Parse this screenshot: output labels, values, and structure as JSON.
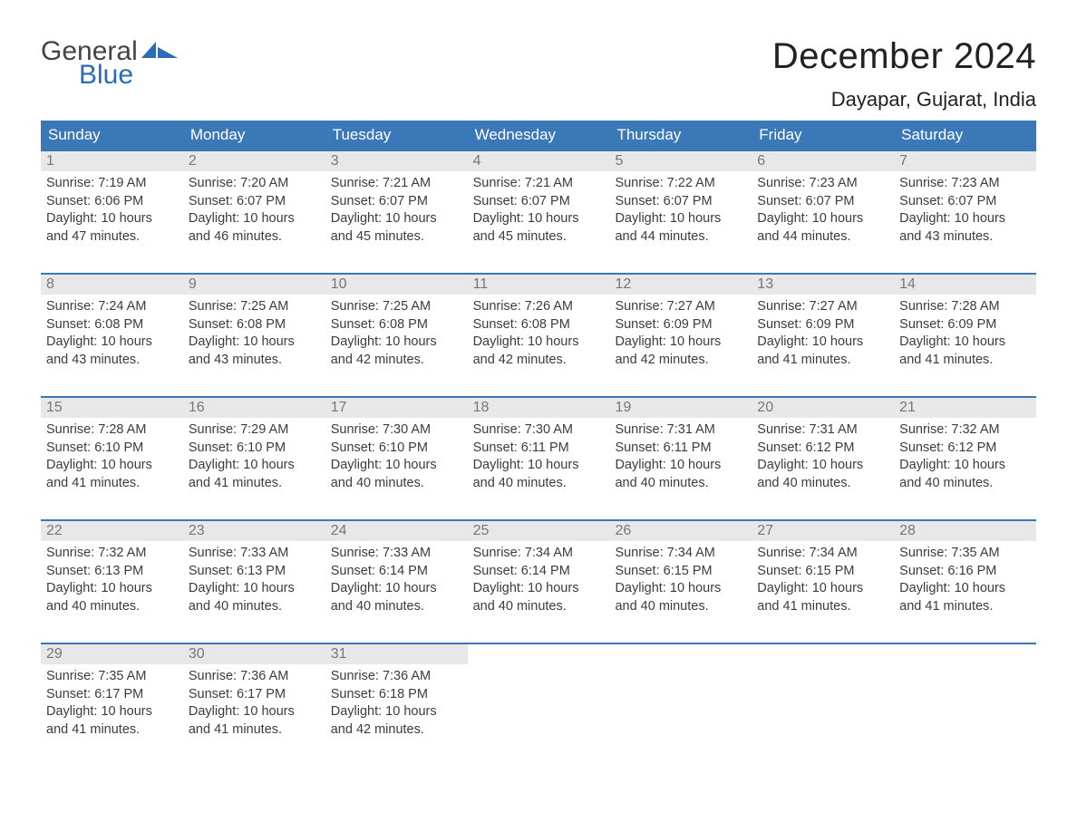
{
  "logo": {
    "word1": "General",
    "word2": "Blue",
    "sail_color": "#2a6db5",
    "word1_color": "#444444"
  },
  "title": "December 2024",
  "location": "Dayapar, Gujarat, India",
  "colors": {
    "header_bg": "#3b78b8",
    "header_text": "#ffffff",
    "daynum_bg": "#e8e8e8",
    "daynum_text": "#777777",
    "body_text": "#3c3c3c",
    "week_border": "#3b78b8",
    "page_bg": "#ffffff"
  },
  "fonts": {
    "title_size": 40,
    "location_size": 22,
    "header_size": 17,
    "daynum_size": 16,
    "body_size": 14.5
  },
  "day_headers": [
    "Sunday",
    "Monday",
    "Tuesday",
    "Wednesday",
    "Thursday",
    "Friday",
    "Saturday"
  ],
  "weeks": [
    [
      {
        "n": "1",
        "sunrise": "7:19 AM",
        "sunset": "6:06 PM",
        "daylight": "10 hours and 47 minutes."
      },
      {
        "n": "2",
        "sunrise": "7:20 AM",
        "sunset": "6:07 PM",
        "daylight": "10 hours and 46 minutes."
      },
      {
        "n": "3",
        "sunrise": "7:21 AM",
        "sunset": "6:07 PM",
        "daylight": "10 hours and 45 minutes."
      },
      {
        "n": "4",
        "sunrise": "7:21 AM",
        "sunset": "6:07 PM",
        "daylight": "10 hours and 45 minutes."
      },
      {
        "n": "5",
        "sunrise": "7:22 AM",
        "sunset": "6:07 PM",
        "daylight": "10 hours and 44 minutes."
      },
      {
        "n": "6",
        "sunrise": "7:23 AM",
        "sunset": "6:07 PM",
        "daylight": "10 hours and 44 minutes."
      },
      {
        "n": "7",
        "sunrise": "7:23 AM",
        "sunset": "6:07 PM",
        "daylight": "10 hours and 43 minutes."
      }
    ],
    [
      {
        "n": "8",
        "sunrise": "7:24 AM",
        "sunset": "6:08 PM",
        "daylight": "10 hours and 43 minutes."
      },
      {
        "n": "9",
        "sunrise": "7:25 AM",
        "sunset": "6:08 PM",
        "daylight": "10 hours and 43 minutes."
      },
      {
        "n": "10",
        "sunrise": "7:25 AM",
        "sunset": "6:08 PM",
        "daylight": "10 hours and 42 minutes."
      },
      {
        "n": "11",
        "sunrise": "7:26 AM",
        "sunset": "6:08 PM",
        "daylight": "10 hours and 42 minutes."
      },
      {
        "n": "12",
        "sunrise": "7:27 AM",
        "sunset": "6:09 PM",
        "daylight": "10 hours and 42 minutes."
      },
      {
        "n": "13",
        "sunrise": "7:27 AM",
        "sunset": "6:09 PM",
        "daylight": "10 hours and 41 minutes."
      },
      {
        "n": "14",
        "sunrise": "7:28 AM",
        "sunset": "6:09 PM",
        "daylight": "10 hours and 41 minutes."
      }
    ],
    [
      {
        "n": "15",
        "sunrise": "7:28 AM",
        "sunset": "6:10 PM",
        "daylight": "10 hours and 41 minutes."
      },
      {
        "n": "16",
        "sunrise": "7:29 AM",
        "sunset": "6:10 PM",
        "daylight": "10 hours and 41 minutes."
      },
      {
        "n": "17",
        "sunrise": "7:30 AM",
        "sunset": "6:10 PM",
        "daylight": "10 hours and 40 minutes."
      },
      {
        "n": "18",
        "sunrise": "7:30 AM",
        "sunset": "6:11 PM",
        "daylight": "10 hours and 40 minutes."
      },
      {
        "n": "19",
        "sunrise": "7:31 AM",
        "sunset": "6:11 PM",
        "daylight": "10 hours and 40 minutes."
      },
      {
        "n": "20",
        "sunrise": "7:31 AM",
        "sunset": "6:12 PM",
        "daylight": "10 hours and 40 minutes."
      },
      {
        "n": "21",
        "sunrise": "7:32 AM",
        "sunset": "6:12 PM",
        "daylight": "10 hours and 40 minutes."
      }
    ],
    [
      {
        "n": "22",
        "sunrise": "7:32 AM",
        "sunset": "6:13 PM",
        "daylight": "10 hours and 40 minutes."
      },
      {
        "n": "23",
        "sunrise": "7:33 AM",
        "sunset": "6:13 PM",
        "daylight": "10 hours and 40 minutes."
      },
      {
        "n": "24",
        "sunrise": "7:33 AM",
        "sunset": "6:14 PM",
        "daylight": "10 hours and 40 minutes."
      },
      {
        "n": "25",
        "sunrise": "7:34 AM",
        "sunset": "6:14 PM",
        "daylight": "10 hours and 40 minutes."
      },
      {
        "n": "26",
        "sunrise": "7:34 AM",
        "sunset": "6:15 PM",
        "daylight": "10 hours and 40 minutes."
      },
      {
        "n": "27",
        "sunrise": "7:34 AM",
        "sunset": "6:15 PM",
        "daylight": "10 hours and 41 minutes."
      },
      {
        "n": "28",
        "sunrise": "7:35 AM",
        "sunset": "6:16 PM",
        "daylight": "10 hours and 41 minutes."
      }
    ],
    [
      {
        "n": "29",
        "sunrise": "7:35 AM",
        "sunset": "6:17 PM",
        "daylight": "10 hours and 41 minutes."
      },
      {
        "n": "30",
        "sunrise": "7:36 AM",
        "sunset": "6:17 PM",
        "daylight": "10 hours and 41 minutes."
      },
      {
        "n": "31",
        "sunrise": "7:36 AM",
        "sunset": "6:18 PM",
        "daylight": "10 hours and 42 minutes."
      },
      null,
      null,
      null,
      null
    ]
  ],
  "labels": {
    "sunrise": "Sunrise: ",
    "sunset": "Sunset: ",
    "daylight": "Daylight: "
  }
}
